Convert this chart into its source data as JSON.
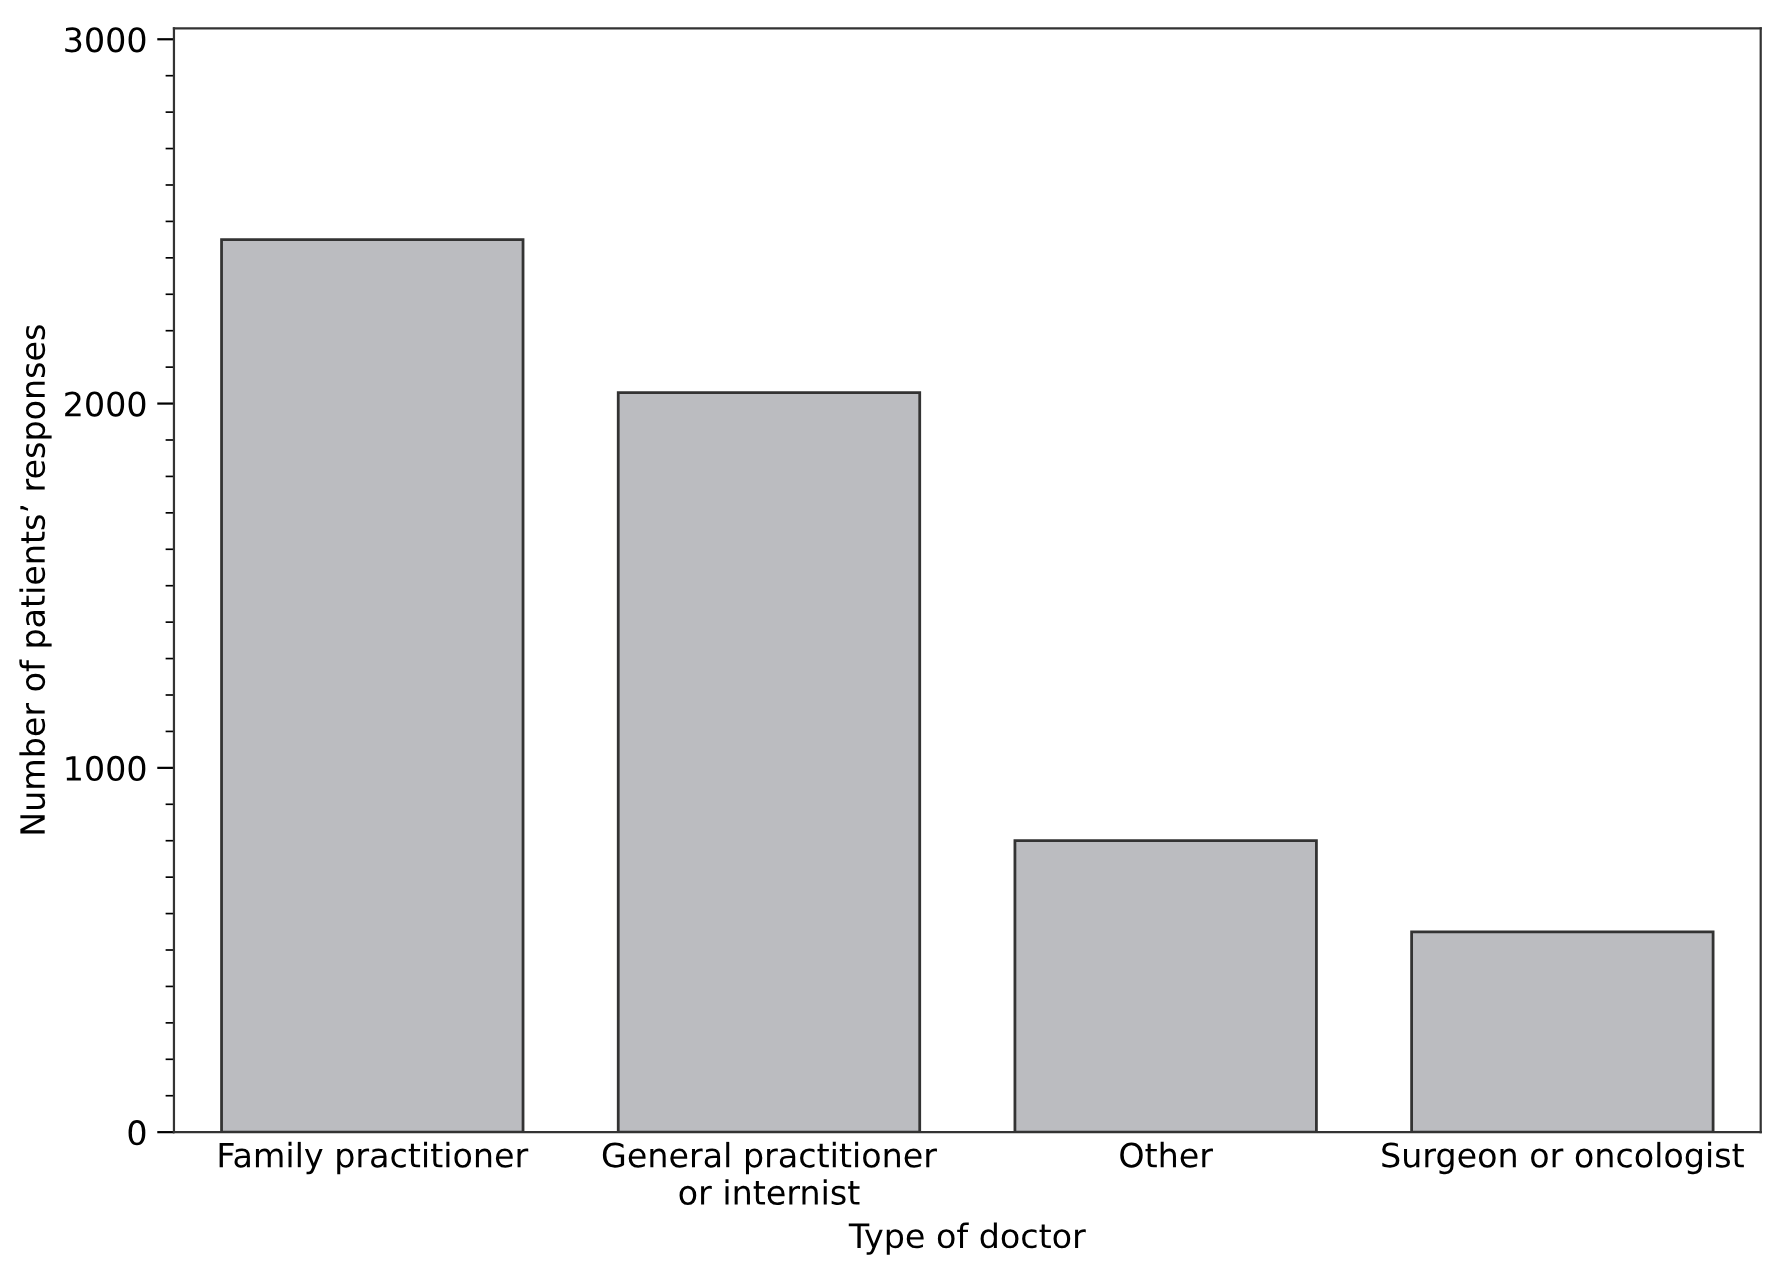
{
  "chart_data": {
    "type": "bar",
    "xlabel": "Type of doctor",
    "ylabel": "Number of patients’ responses",
    "categories": [
      "Family practitioner",
      "General practitioner\nor internist",
      "Other",
      "Surgeon or oncologist"
    ],
    "values": [
      2450,
      2030,
      800,
      550
    ],
    "color": "#bbbcc0",
    "ylim": [
      0,
      3030
    ],
    "yticks": [
      0,
      1000,
      2000,
      3000
    ],
    "grid": false,
    "legend": false
  }
}
